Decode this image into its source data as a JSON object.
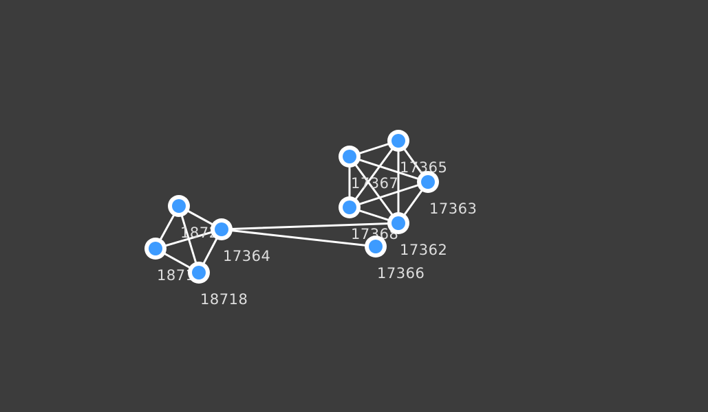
{
  "graph": {
    "node_color": "#3d9bff",
    "ring_color": "#ffffff",
    "edge_color": "#ffffff",
    "label_color": "#dedede",
    "background": "#3c3c3c",
    "nodes": [
      {
        "id": "17365",
        "label": "17365"
      },
      {
        "id": "17367",
        "label": "17367"
      },
      {
        "id": "17363",
        "label": "17363"
      },
      {
        "id": "17368",
        "label": "17368"
      },
      {
        "id": "17362",
        "label": "17362"
      },
      {
        "id": "17366",
        "label": "17366"
      },
      {
        "id": "18720",
        "label": "18720"
      },
      {
        "id": "17364",
        "label": "17364"
      },
      {
        "id": "18719",
        "label": "18719"
      },
      {
        "id": "18718",
        "label": "18718"
      }
    ],
    "edges": [
      [
        "17367",
        "17365"
      ],
      [
        "17367",
        "17363"
      ],
      [
        "17367",
        "17368"
      ],
      [
        "17367",
        "17362"
      ],
      [
        "17365",
        "17363"
      ],
      [
        "17365",
        "17368"
      ],
      [
        "17365",
        "17362"
      ],
      [
        "17363",
        "17368"
      ],
      [
        "17363",
        "17362"
      ],
      [
        "17368",
        "17362"
      ],
      [
        "17364",
        "17362"
      ],
      [
        "17364",
        "17366"
      ],
      [
        "18720",
        "17364"
      ],
      [
        "18720",
        "18719"
      ],
      [
        "18720",
        "18718"
      ],
      [
        "18719",
        "17364"
      ],
      [
        "18719",
        "18718"
      ],
      [
        "17364",
        "18718"
      ]
    ]
  }
}
